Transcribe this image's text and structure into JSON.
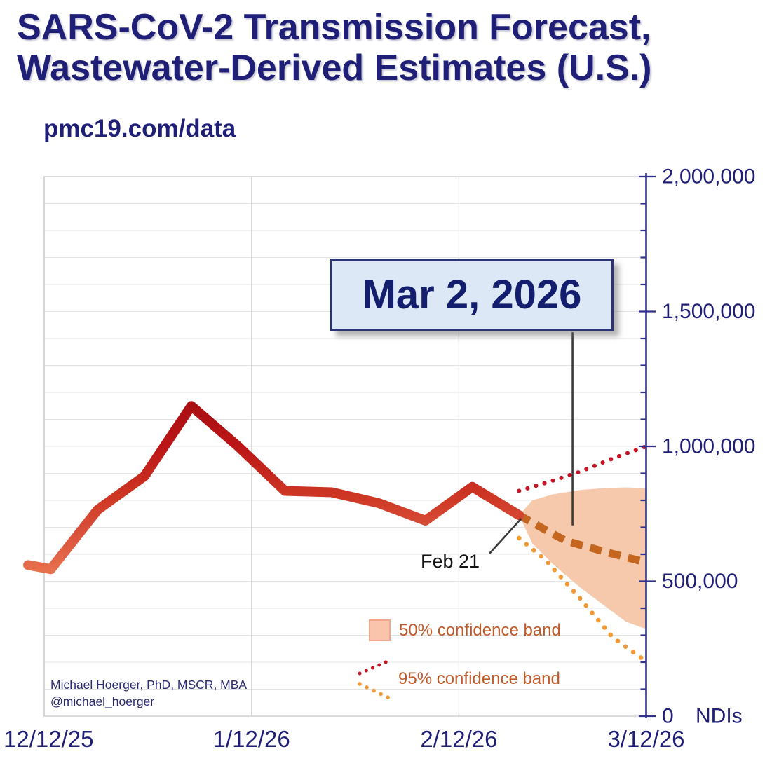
{
  "header": {
    "title_line1": "SARS-CoV-2 Transmission Forecast,",
    "title_line2": "Wastewater-Derived Estimates (U.S.)",
    "source": "pmc19.com/data"
  },
  "attribution": {
    "line1": "Michael Hoerger, PhD, MSCR, MBA",
    "line2": "@michael_hoerger"
  },
  "legend": {
    "ci50_label": "50% confidence band",
    "ci95_label": "95% confidence band"
  },
  "annotations": {
    "forecast_date": {
      "label": "Mar 2, 2026",
      "day": 79,
      "line_end_value": 707000
    },
    "last_observed": {
      "label": "Feb 21",
      "day": 71,
      "value": 745000
    }
  },
  "colors": {
    "navy_text": "#1f1f78",
    "axis": "#30308c",
    "observed_gradient": [
      "#a80f12",
      "#bb1516",
      "#cd3724",
      "#d9503a",
      "#e8724e"
    ],
    "forecast_median": "#c4661f",
    "ci95_upper": "#c41425",
    "ci95_lower": "#f29a35",
    "ci50_band_fill": "#f6c9ad",
    "legend_swatch": "#f9c4ab",
    "legend_text": "#c05a2b",
    "grid": "#e4e4e4",
    "grid_vertical": "#d8d8d8",
    "plot_border": "#c8c8c8",
    "callout_line": "#3a3a3a",
    "annotation_box_bg": "#dce8f5",
    "annotation_box_border": "#2a3374",
    "feb21_text": "#141414"
  },
  "chart_data": {
    "type": "line",
    "title": "SARS-CoV-2 Transmission Forecast, Wastewater-Derived Estimates (U.S.)",
    "xlabel": "",
    "ylabel": "NDIs",
    "ylim": [
      0,
      2000000
    ],
    "x_unit": "days since 12/12/25",
    "grid": true,
    "legend_position": "bottom-center-inside",
    "x_axis": {
      "tick_days": [
        0,
        31,
        62,
        90
      ],
      "tick_labels": [
        "12/12/25",
        "1/12/26",
        "2/12/26",
        "3/12/26"
      ]
    },
    "y_axis": {
      "unit_label": "NDIs",
      "minor_step": 100000,
      "major_ticks": [
        {
          "value": 2000000,
          "label": "2,000,000"
        },
        {
          "value": 1500000,
          "label": "1,500,000"
        },
        {
          "value": 1000000,
          "label": "1,000,000"
        },
        {
          "value": 500000,
          "label": "500,000"
        },
        {
          "value": 0,
          "label": "0"
        }
      ]
    },
    "series": {
      "observed": {
        "name": "Observed wastewater-derived transmission",
        "style": "solid",
        "x_days": [
          -2.4,
          1,
          8,
          15,
          22,
          29,
          36,
          43,
          50,
          57,
          64,
          71
        ],
        "values": [
          560000,
          545000,
          765000,
          890000,
          1150000,
          1000000,
          835000,
          830000,
          790000,
          725000,
          850000,
          745000
        ]
      },
      "forecast_median": {
        "name": "Forecast median",
        "style": "dashed",
        "x_days": [
          71,
          75,
          78,
          84,
          90
        ],
        "values": [
          745000,
          690000,
          650000,
          608000,
          570000
        ]
      },
      "ci95_upper": {
        "name": "95% confidence band upper",
        "style": "dotted",
        "x_days": [
          71,
          75,
          80,
          85,
          90
        ],
        "values": [
          835000,
          865000,
          905000,
          955000,
          1000000
        ]
      },
      "ci95_lower": {
        "name": "95% confidence band lower",
        "style": "dotted",
        "x_days": [
          71,
          75,
          80,
          85,
          90
        ],
        "values": [
          660000,
          578000,
          440000,
          292000,
          203000
        ]
      },
      "ci50_band": {
        "name": "50% confidence band",
        "style": "area",
        "x_days": [
          71,
          73,
          76,
          80,
          84,
          87,
          90
        ],
        "upper": [
          745000,
          800000,
          822000,
          838000,
          846000,
          848000,
          845000
        ],
        "lower": [
          745000,
          640000,
          565000,
          480000,
          405000,
          350000,
          323000
        ]
      }
    }
  }
}
